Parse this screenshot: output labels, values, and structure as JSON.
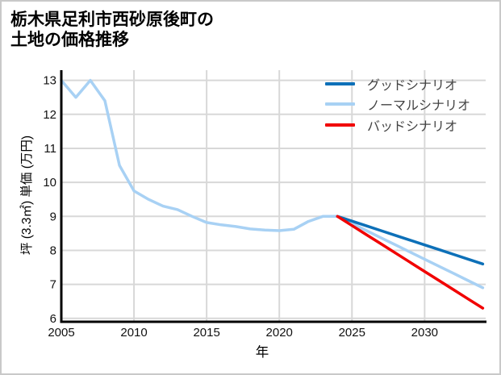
{
  "page": {
    "title_line1": "栃木県足利市西砂原後町の",
    "title_line2": "土地の価格推移"
  },
  "chart_data": {
    "type": "line",
    "title": "栃木県足利市西砂原後町の土地の価格推移",
    "xlabel": "年",
    "ylabel": "坪 (3.3㎡) 単価 (万円)",
    "xlim": [
      2005,
      2034.2
    ],
    "ylim": [
      5.9,
      13.3
    ],
    "x_ticks": [
      2005,
      2010,
      2015,
      2020,
      2025,
      2030
    ],
    "y_ticks": [
      6,
      7,
      8,
      9,
      10,
      11,
      12,
      13
    ],
    "grid": true,
    "legend_position": "top-right-inside",
    "colors": {
      "good": "#0d70b8",
      "normal": "#a8d1f4",
      "bad": "#f10000",
      "grid": "#d8d8d8",
      "axis": "#000000"
    },
    "series": [
      {
        "key": "normal",
        "name": "ノーマルシナリオ",
        "color": "#a8d1f4",
        "x": [
          2005,
          2006,
          2007,
          2008,
          2009,
          2010,
          2011,
          2012,
          2013,
          2014,
          2015,
          2016,
          2017,
          2018,
          2019,
          2020,
          2021,
          2022,
          2023,
          2024,
          2025,
          2026,
          2027,
          2028,
          2029,
          2030,
          2031,
          2032,
          2033,
          2034
        ],
        "y": [
          13.0,
          12.5,
          13.0,
          12.4,
          10.5,
          9.75,
          9.5,
          9.3,
          9.2,
          9.0,
          8.82,
          8.75,
          8.7,
          8.63,
          8.6,
          8.58,
          8.62,
          8.85,
          9.0,
          9.0,
          8.79,
          8.58,
          8.37,
          8.16,
          7.95,
          7.74,
          7.53,
          7.32,
          7.11,
          6.9
        ]
      },
      {
        "key": "good",
        "name": "グッドシナリオ",
        "color": "#0d70b8",
        "x": [
          2024,
          2025,
          2026,
          2027,
          2028,
          2029,
          2030,
          2031,
          2032,
          2033,
          2034
        ],
        "y": [
          9.0,
          8.86,
          8.72,
          8.58,
          8.44,
          8.3,
          8.16,
          8.02,
          7.88,
          7.74,
          7.6
        ]
      },
      {
        "key": "bad",
        "name": "バッドシナリオ",
        "color": "#f10000",
        "x": [
          2024,
          2025,
          2026,
          2027,
          2028,
          2029,
          2030,
          2031,
          2032,
          2033,
          2034
        ],
        "y": [
          9.0,
          8.73,
          8.46,
          8.19,
          7.92,
          7.65,
          7.38,
          7.11,
          6.84,
          6.57,
          6.3
        ]
      }
    ],
    "legend_order": [
      "good",
      "normal",
      "bad"
    ]
  }
}
